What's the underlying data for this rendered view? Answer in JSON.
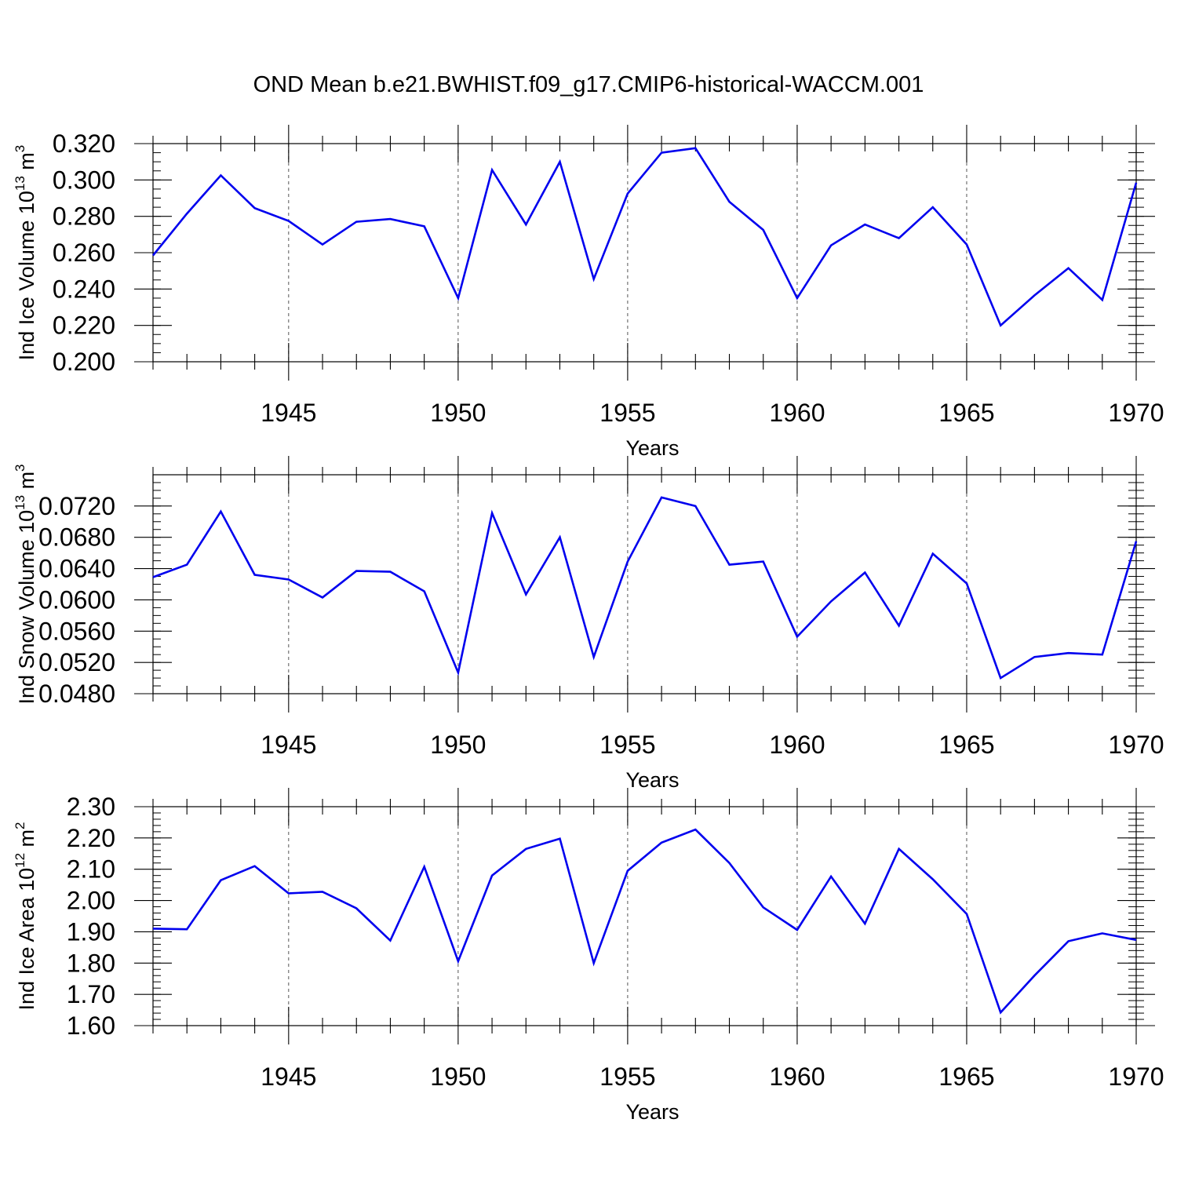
{
  "figure": {
    "title": "OND Mean b.e21.BWHIST.f09_g17.CMIP6-historical-WACCM.001"
  },
  "colors": {
    "series": "#0000ee",
    "axis": "#000000",
    "grid": "#555555"
  },
  "chart_data": [
    {
      "type": "line",
      "ylabel_main": "Ind Ice Volume 10",
      "ylabel_exp": "13",
      "ylabel_unit": "m",
      "ylabel_unit_exp": "3",
      "xlabel": "Years",
      "xlim": [
        1941,
        1970
      ],
      "ylim": [
        0.2,
        0.32
      ],
      "yticks": [
        "0.200",
        "0.220",
        "0.240",
        "0.260",
        "0.280",
        "0.300",
        "0.320"
      ],
      "yminor": 0.005,
      "xticks": [
        "1945",
        "1950",
        "1955",
        "1960",
        "1965",
        "1970"
      ],
      "grid": "vertical dashed at major x ticks",
      "x": [
        1941,
        1942,
        1943,
        1944,
        1945,
        1946,
        1947,
        1948,
        1949,
        1950,
        1951,
        1952,
        1953,
        1954,
        1955,
        1956,
        1957,
        1958,
        1959,
        1960,
        1961,
        1962,
        1963,
        1964,
        1965,
        1966,
        1967,
        1968,
        1969,
        1970
      ],
      "values": [
        0.2585,
        0.2815,
        0.3025,
        0.2845,
        0.2775,
        0.2645,
        0.277,
        0.2785,
        0.2745,
        0.235,
        0.3055,
        0.2755,
        0.31,
        0.2455,
        0.2925,
        0.315,
        0.3175,
        0.288,
        0.2725,
        0.235,
        0.264,
        0.2755,
        0.268,
        0.285,
        0.2645,
        0.22,
        0.2365,
        0.2515,
        0.234,
        0.2985
      ]
    },
    {
      "type": "line",
      "ylabel_main": "Ind Snow Volume 10",
      "ylabel_exp": "13",
      "ylabel_unit": "m",
      "ylabel_unit_exp": "3",
      "xlabel": "Years",
      "xlim": [
        1941,
        1970
      ],
      "ylim": [
        0.048,
        0.076
      ],
      "yticks": [
        "0.0480",
        "0.0520",
        "0.0560",
        "0.0600",
        "0.0640",
        "0.0680",
        "0.0720"
      ],
      "yminor": 0.001,
      "xticks": [
        "1945",
        "1950",
        "1955",
        "1960",
        "1965",
        "1970"
      ],
      "grid": "vertical dashed at major x ticks",
      "x": [
        1941,
        1942,
        1943,
        1944,
        1945,
        1946,
        1947,
        1948,
        1949,
        1950,
        1951,
        1952,
        1953,
        1954,
        1955,
        1956,
        1957,
        1958,
        1959,
        1960,
        1961,
        1962,
        1963,
        1964,
        1965,
        1966,
        1967,
        1968,
        1969,
        1970
      ],
      "values": [
        0.0629,
        0.0645,
        0.0713,
        0.0632,
        0.0626,
        0.0603,
        0.0637,
        0.0636,
        0.0611,
        0.0507,
        0.0711,
        0.0607,
        0.068,
        0.0527,
        0.0649,
        0.0731,
        0.072,
        0.0645,
        0.0649,
        0.0553,
        0.0598,
        0.0635,
        0.0567,
        0.0659,
        0.0621,
        0.05,
        0.0527,
        0.0532,
        0.053,
        0.0675
      ]
    },
    {
      "type": "line",
      "ylabel_main": "Ind Ice Area 10",
      "ylabel_exp": "12",
      "ylabel_unit": "m",
      "ylabel_unit_exp": "2",
      "xlabel": "Years",
      "xlim": [
        1941,
        1970
      ],
      "ylim": [
        1.6,
        2.3
      ],
      "yticks": [
        "1.60",
        "1.70",
        "1.80",
        "1.90",
        "2.00",
        "2.10",
        "2.20",
        "2.30"
      ],
      "yminor": 0.02,
      "xticks": [
        "1945",
        "1950",
        "1955",
        "1960",
        "1965",
        "1970"
      ],
      "grid": "vertical dashed at major x ticks",
      "x": [
        1941,
        1942,
        1943,
        1944,
        1945,
        1946,
        1947,
        1948,
        1949,
        1950,
        1951,
        1952,
        1953,
        1954,
        1955,
        1956,
        1957,
        1958,
        1959,
        1960,
        1961,
        1962,
        1963,
        1964,
        1965,
        1966,
        1967,
        1968,
        1969,
        1970
      ],
      "values": [
        1.91,
        1.908,
        2.065,
        2.11,
        2.023,
        2.028,
        1.975,
        1.872,
        2.108,
        1.806,
        2.08,
        2.165,
        2.198,
        1.8,
        2.095,
        2.185,
        2.227,
        2.12,
        1.978,
        1.906,
        2.077,
        1.926,
        2.165,
        2.068,
        1.957,
        1.642,
        1.76,
        1.87,
        1.895,
        1.874
      ]
    }
  ]
}
